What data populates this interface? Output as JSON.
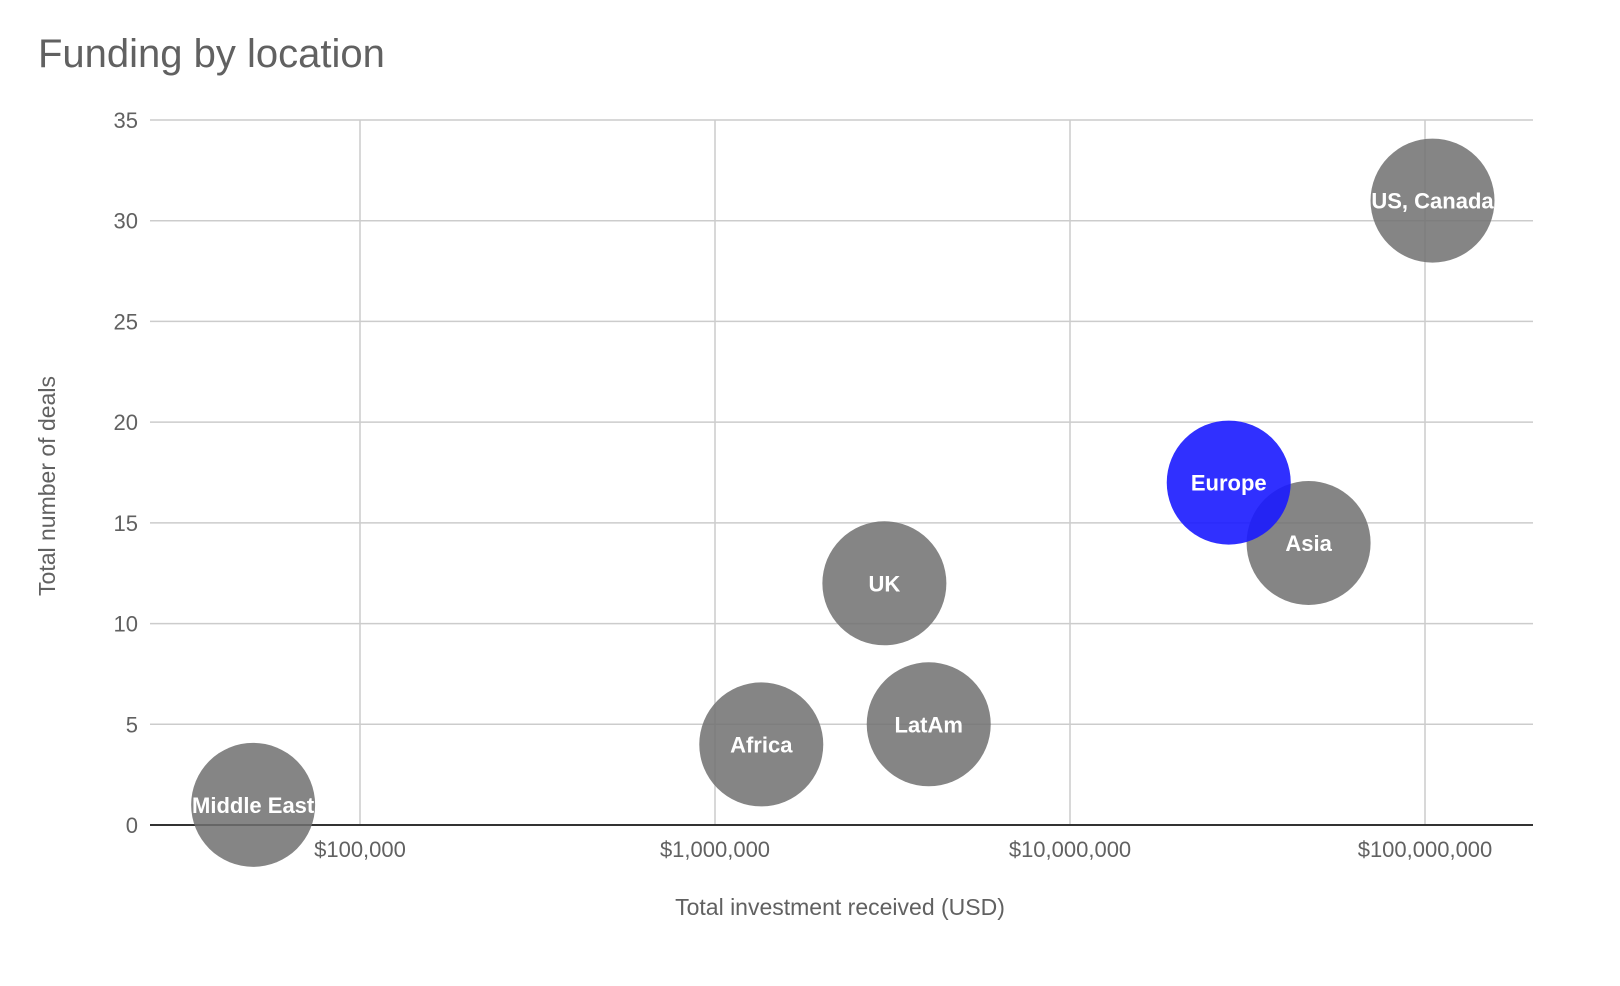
{
  "chart_data": {
    "type": "scatter",
    "variant": "bubble",
    "title": "Funding by location",
    "xlabel": "Total investment received (USD)",
    "ylabel": "Total number of deals",
    "xscale": "log",
    "xlim": [
      30000,
      200000000
    ],
    "ylim": [
      0,
      35
    ],
    "xticks": [
      100000,
      1000000,
      10000000,
      100000000
    ],
    "xtick_labels": [
      "$100,000",
      "$1,000,000",
      "$10,000,000",
      "$100,000,000"
    ],
    "yticks": [
      0,
      5,
      10,
      15,
      20,
      25,
      30,
      35
    ],
    "ytick_labels": [
      "0",
      "5",
      "10",
      "15",
      "20",
      "25",
      "30",
      "35"
    ],
    "grid": true,
    "legend": "none",
    "colors": {
      "default": "#707070",
      "highlight": "#1a1aff"
    },
    "points": [
      {
        "label": "Middle East",
        "x": 50000,
        "y": 1,
        "highlight": false
      },
      {
        "label": "Africa",
        "x": 1350000,
        "y": 4,
        "highlight": false
      },
      {
        "label": "LatAm",
        "x": 4000000,
        "y": 5,
        "highlight": false
      },
      {
        "label": "UK",
        "x": 3000000,
        "y": 12,
        "highlight": false
      },
      {
        "label": "Asia",
        "x": 47000000,
        "y": 14,
        "highlight": false
      },
      {
        "label": "Europe",
        "x": 28000000,
        "y": 17,
        "highlight": true
      },
      {
        "label": "US, Canada",
        "x": 105000000,
        "y": 31,
        "highlight": false
      }
    ]
  }
}
